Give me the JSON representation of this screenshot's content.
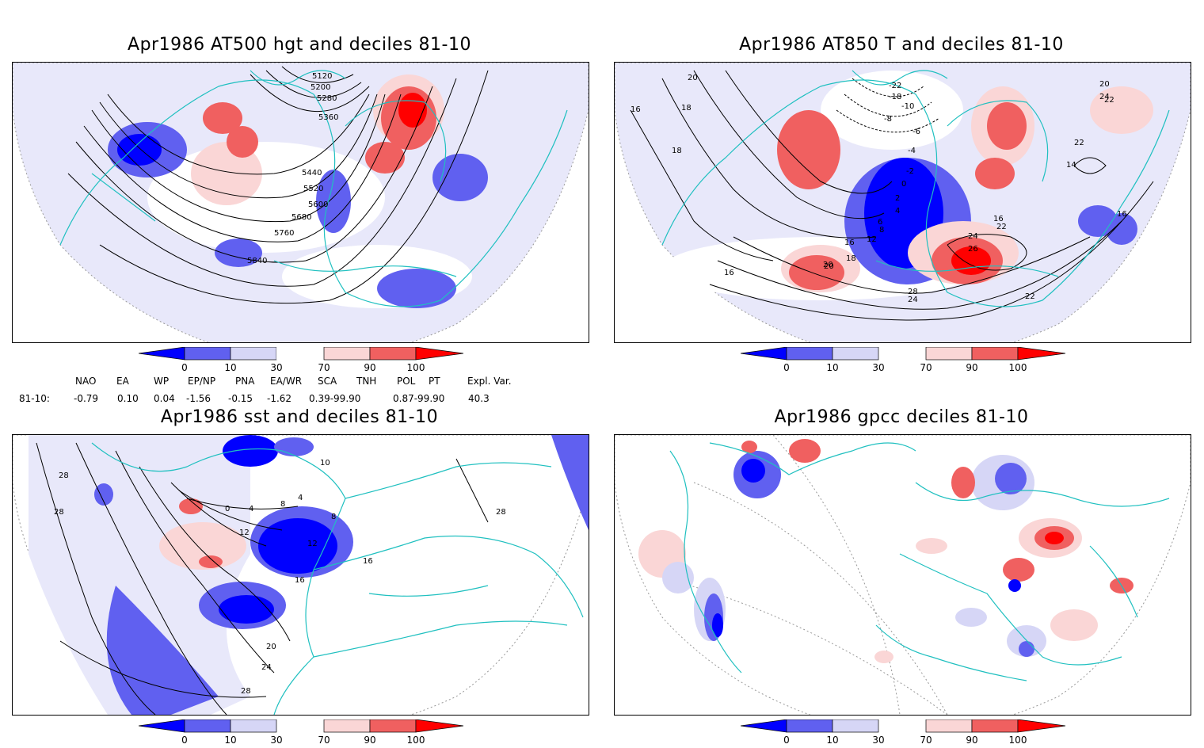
{
  "panels": {
    "p1": {
      "title": "Apr1986 AT500 hgt and deciles 81-10",
      "contour_labels": [
        "5120",
        "5200",
        "5280",
        "5360",
        "5440",
        "5520",
        "5600",
        "5680",
        "5760",
        "5840"
      ]
    },
    "p2": {
      "title": "Apr1986 AT850 T and deciles 81-10",
      "contour_labels": [
        "20",
        "18",
        "18",
        "16",
        "16",
        "18",
        "20",
        "-6",
        "-4",
        "-2",
        "0",
        "2",
        "4",
        "6",
        "8",
        "12",
        "16",
        "22",
        "24",
        "26",
        "28",
        "24",
        "22",
        "20",
        "22",
        "24",
        "22",
        "14",
        "16",
        "-18",
        "-10",
        "-8",
        "-22",
        "16",
        "20"
      ]
    },
    "p3": {
      "title": "Apr1986 sst and deciles 81-10",
      "contour_labels": [
        "28",
        "28",
        "0",
        "4",
        "8",
        "12",
        "16",
        "20",
        "24",
        "28",
        "10",
        "4",
        "8",
        "12",
        "16",
        "28"
      ]
    },
    "p4": {
      "title": "Apr1986 gpcc deciles 81-10"
    }
  },
  "colorbar": {
    "ticks": [
      "0",
      "10",
      "30",
      "70",
      "90",
      "100"
    ],
    "colors": [
      "#0000ff",
      "#6060f0",
      "#d6d6f6",
      "#ffffff",
      "#fad6d6",
      "#f06060",
      "#ff0000"
    ]
  },
  "indices": {
    "headers": [
      "NAO",
      "EA",
      "WP",
      "EP/NP",
      "PNA",
      "EA/WR",
      "SCA",
      "TNH",
      "POL",
      "PT",
      "Expl. Var."
    ],
    "row_label": "81-10:",
    "values": [
      "-0.79",
      "0.10",
      "0.04",
      "-1.56",
      "-0.15",
      "-1.62",
      "0.39-99.90",
      "0.87-99.90",
      "40.3"
    ]
  },
  "map_colors": {
    "coast": "#20c0c0",
    "contour": "#000000",
    "grid": "#999999"
  }
}
